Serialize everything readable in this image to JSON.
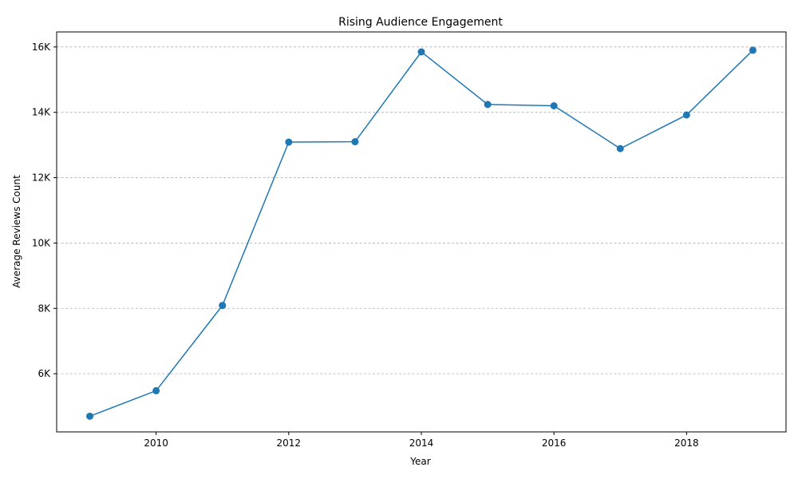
{
  "chart_data": {
    "type": "line",
    "title": "Rising Audience Engagement",
    "xlabel": "Year",
    "ylabel": "Average Reviews Count",
    "x": [
      2009,
      2010,
      2011,
      2012,
      2013,
      2014,
      2015,
      2016,
      2017,
      2018,
      2019
    ],
    "series": [
      {
        "values": [
          4700,
          5480,
          8090,
          13090,
          13100,
          15850,
          14240,
          14200,
          12890,
          13920,
          15900
        ],
        "color": "#1f77b4",
        "marker": "circle"
      }
    ],
    "xlim": [
      2008.5,
      2019.5
    ],
    "ylim": [
      4220,
      16460
    ],
    "xticks": [
      2010,
      2012,
      2014,
      2016,
      2018
    ],
    "yticks": [
      6000,
      8000,
      10000,
      12000,
      14000,
      16000
    ],
    "ytick_labels": [
      "6K",
      "8K",
      "10K",
      "12K",
      "14K",
      "16K"
    ],
    "grid": "y-dashed",
    "grid_color": "#b0b0b0"
  }
}
